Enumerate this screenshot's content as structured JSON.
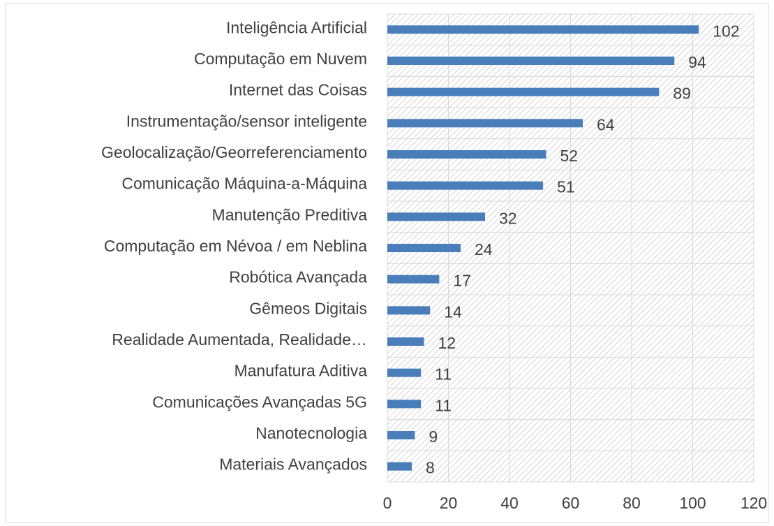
{
  "chart_data": {
    "type": "barh",
    "categories": [
      "Inteligência Artificial",
      "Computação em Nuvem",
      "Internet das Coisas",
      "Instrumentação/sensor inteligente",
      "Geolocalização/Georreferenciamento",
      "Comunicação Máquina-a-Máquina",
      "Manutenção Preditiva",
      "Computação em Névoa / em Neblina",
      "Robótica Avançada",
      "Gêmeos Digitais",
      "Realidade Aumentada, Realidade…",
      "Manufatura Aditiva",
      "Comunicações Avançadas 5G",
      "Nanotecnologia",
      "Materiais Avançados"
    ],
    "values": [
      102,
      94,
      89,
      64,
      52,
      51,
      32,
      24,
      17,
      14,
      12,
      11,
      11,
      9,
      8
    ],
    "color": "#4a7ebb",
    "xlim": [
      0,
      120
    ],
    "xticks": [
      0,
      20,
      40,
      60,
      80,
      100,
      120
    ],
    "grid": true
  }
}
